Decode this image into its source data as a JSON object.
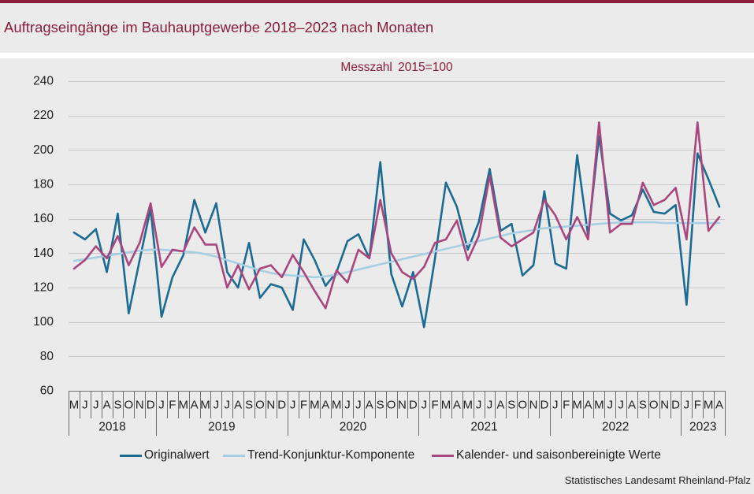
{
  "chart_data": {
    "type": "line",
    "title": "Auftragseingänge im Bauhauptgewerbe 2018–2023 nach Monaten",
    "subtitle": "Messzahl 2015=100",
    "xlabel": "",
    "ylabel": "",
    "ylim": [
      60,
      240
    ],
    "yticks": [
      60,
      80,
      100,
      120,
      140,
      160,
      180,
      200,
      220,
      240
    ],
    "grid": true,
    "categories": [
      "M",
      "J",
      "J",
      "A",
      "S",
      "O",
      "N",
      "D",
      "J",
      "F",
      "M",
      "A",
      "M",
      "J",
      "J",
      "A",
      "S",
      "O",
      "N",
      "D",
      "J",
      "F",
      "M",
      "A",
      "M",
      "J",
      "J",
      "A",
      "S",
      "O",
      "N",
      "D",
      "J",
      "F",
      "M",
      "A",
      "M",
      "J",
      "J",
      "A",
      "S",
      "O",
      "N",
      "D",
      "J",
      "F",
      "M",
      "A",
      "M",
      "J",
      "J",
      "A",
      "S",
      "O",
      "N",
      "D",
      "J",
      "F",
      "M",
      "A"
    ],
    "years": [
      {
        "label": "2018",
        "months": 8
      },
      {
        "label": "2019",
        "months": 12
      },
      {
        "label": "2020",
        "months": 12
      },
      {
        "label": "2021",
        "months": 12
      },
      {
        "label": "2022",
        "months": 12
      },
      {
        "label": "2023",
        "months": 4
      }
    ],
    "series": [
      {
        "name": "Originalwert",
        "color": "#1b6b93",
        "values": [
          152,
          148,
          154,
          129,
          163,
          105,
          136,
          166,
          103,
          126,
          139,
          171,
          152,
          169,
          129,
          120,
          146,
          114,
          122,
          120,
          107,
          148,
          136,
          121,
          129,
          147,
          151,
          137,
          193,
          128,
          109,
          129,
          97,
          137,
          181,
          167,
          142,
          158,
          189,
          153,
          157,
          127,
          133,
          176,
          134,
          131,
          197,
          150,
          208,
          163,
          159,
          162,
          177,
          164,
          163,
          168,
          110,
          198,
          183,
          167
        ]
      },
      {
        "name": "Trend-Konjunktur-Komponente",
        "color": "#a7cfe3",
        "values": [
          135.5,
          136.5,
          137.5,
          138.5,
          139.5,
          140.5,
          141.5,
          142,
          142,
          141.5,
          141,
          140.5,
          139.5,
          138,
          136,
          134,
          132,
          130,
          128.5,
          127.5,
          127,
          126.5,
          126,
          126.5,
          127.5,
          129,
          130.5,
          132,
          133.5,
          135,
          136.5,
          138,
          139.5,
          141,
          142.5,
          144,
          145.5,
          147,
          148.5,
          150,
          151.5,
          152.5,
          153.5,
          154.5,
          155,
          155.5,
          156,
          156.5,
          157,
          157.5,
          158,
          158,
          158,
          158,
          157.5,
          157.5,
          157.5,
          157.5,
          157.5,
          157.5
        ]
      },
      {
        "name": "Kalender- und saisonbereinigte Werte",
        "color": "#a9467e",
        "values": [
          131,
          136,
          144,
          137,
          150,
          133,
          146,
          169,
          132,
          142,
          141,
          155,
          145,
          145,
          120,
          133,
          119,
          131,
          133,
          126,
          139,
          129,
          118,
          108,
          130,
          123,
          142,
          137,
          171,
          140,
          129,
          125,
          132,
          146,
          148,
          159,
          136,
          150,
          185,
          149,
          144,
          148,
          152,
          171,
          162,
          148,
          161,
          148,
          216,
          152,
          157,
          157,
          181,
          168,
          171,
          178,
          148,
          216,
          153,
          161
        ]
      }
    ]
  },
  "colors": {
    "accent": "#8b1d3d",
    "background": "#ebebeb"
  },
  "footer": {
    "source": "Statistisches Landesamt Rheinland-Pfalz"
  }
}
